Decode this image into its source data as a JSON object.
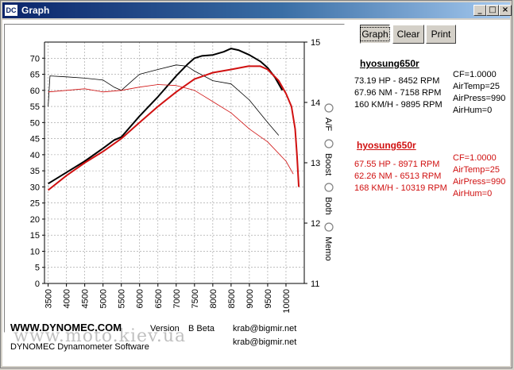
{
  "window": {
    "title": "Graph",
    "app_icon_text": "DC",
    "controls": {
      "minimize": "_",
      "maximize": "□",
      "close": "×"
    }
  },
  "toolbar": {
    "graph_label": "Graph",
    "clear_label": "Clear",
    "print_label": "Print"
  },
  "radio_options": [
    {
      "label": "A/F",
      "selected": false
    },
    {
      "label": "Boost",
      "selected": false
    },
    {
      "label": "Both",
      "selected": false
    },
    {
      "label": "Memo",
      "selected": false
    }
  ],
  "runs": [
    {
      "name": "hyosung650r",
      "color": "#000000",
      "hp": "73.19 HP - 8452 RPM",
      "nm": "67.96 NM - 7158 RPM",
      "kmh": "160 KM/H - 9895 RPM",
      "cf": "CF=1.0000",
      "air_temp": "AirTemp=25",
      "air_press": "AirPress=990",
      "air_hum": "AirHum=0"
    },
    {
      "name": "hyosung650r",
      "color": "#d01010",
      "hp": "67.55 HP - 8971 RPM",
      "nm": "62.26 NM - 6513 RPM",
      "kmh": "168 KM/H - 10319 RPM",
      "cf": "CF=1.0000",
      "air_temp": "AirTemp=25",
      "air_press": "AirPress=990",
      "air_hum": "AirHum=0"
    }
  ],
  "footer": {
    "brand": "WWW.DYNOMEC.COM",
    "version_label": "Version",
    "version_value": "B Beta",
    "email_1": "krab@bigmir.net",
    "email_2": "krab@bigmir.net",
    "software": "DYNOMEC Dynamometer Software",
    "watermark": "www.moto.kiev.ua"
  },
  "chart_data": {
    "type": "line",
    "xlim": [
      3400,
      10500
    ],
    "ylim": [
      0,
      75
    ],
    "y2lim": [
      11,
      15
    ],
    "x_ticks": [
      "3500",
      "4000",
      "4500",
      "5000",
      "5500",
      "6000",
      "6500",
      "7000",
      "7500",
      "8000",
      "8500",
      "9000",
      "9500",
      "10000"
    ],
    "y_ticks": [
      "0",
      "5",
      "10",
      "15",
      "20",
      "25",
      "30",
      "35",
      "40",
      "45",
      "50",
      "55",
      "60",
      "65",
      "70"
    ],
    "y2_ticks": [
      "11",
      "12",
      "13",
      "14",
      "15"
    ],
    "grid": true,
    "series": [
      {
        "color": "#000000",
        "width": 2,
        "x": [
          3500,
          4000,
          4500,
          5000,
          5300,
          5500,
          6000,
          6500,
          7000,
          7300,
          7500,
          7700,
          8000,
          8300,
          8500,
          8700,
          9000,
          9300,
          9500,
          9700,
          9900
        ],
        "y": [
          31,
          34.5,
          38,
          42,
          44.5,
          45.5,
          52,
          58,
          64.5,
          68,
          70,
          70.7,
          71,
          72,
          73,
          72.5,
          71,
          69,
          67,
          64,
          60
        ]
      },
      {
        "color": "#000000",
        "width": 0.8,
        "x": [
          3500,
          3550,
          4000,
          4500,
          5000,
          5300,
          5500,
          5800,
          6000,
          6500,
          7000,
          7300,
          7500,
          8000,
          8500,
          9000,
          9500,
          9800
        ],
        "y": [
          55,
          64.5,
          64.2,
          63.8,
          63.2,
          61,
          60,
          63,
          65,
          66.5,
          67.9,
          67.5,
          66,
          63,
          62,
          57,
          50,
          46
        ]
      },
      {
        "color": "#d01010",
        "width": 2,
        "x": [
          3500,
          4000,
          4500,
          5000,
          5500,
          6000,
          6500,
          7000,
          7500,
          8000,
          8500,
          8970,
          9300,
          9500,
          9800,
          10000,
          10150,
          10250,
          10300,
          10350
        ],
        "y": [
          29,
          33.5,
          37.5,
          41,
          45,
          50,
          55,
          59.5,
          63.5,
          65.5,
          66.5,
          67.5,
          67.5,
          66.5,
          63,
          59,
          55,
          48,
          40,
          30
        ]
      },
      {
        "color": "#d01010",
        "width": 0.8,
        "x": [
          3500,
          4000,
          4500,
          5000,
          5500,
          6000,
          6500,
          7000,
          7500,
          8000,
          8500,
          9000,
          9500,
          10000,
          10200
        ],
        "y": [
          59.5,
          60,
          60.5,
          59.5,
          60,
          61,
          61.8,
          61.5,
          60,
          56.5,
          53,
          48,
          44,
          38,
          34
        ]
      }
    ]
  }
}
